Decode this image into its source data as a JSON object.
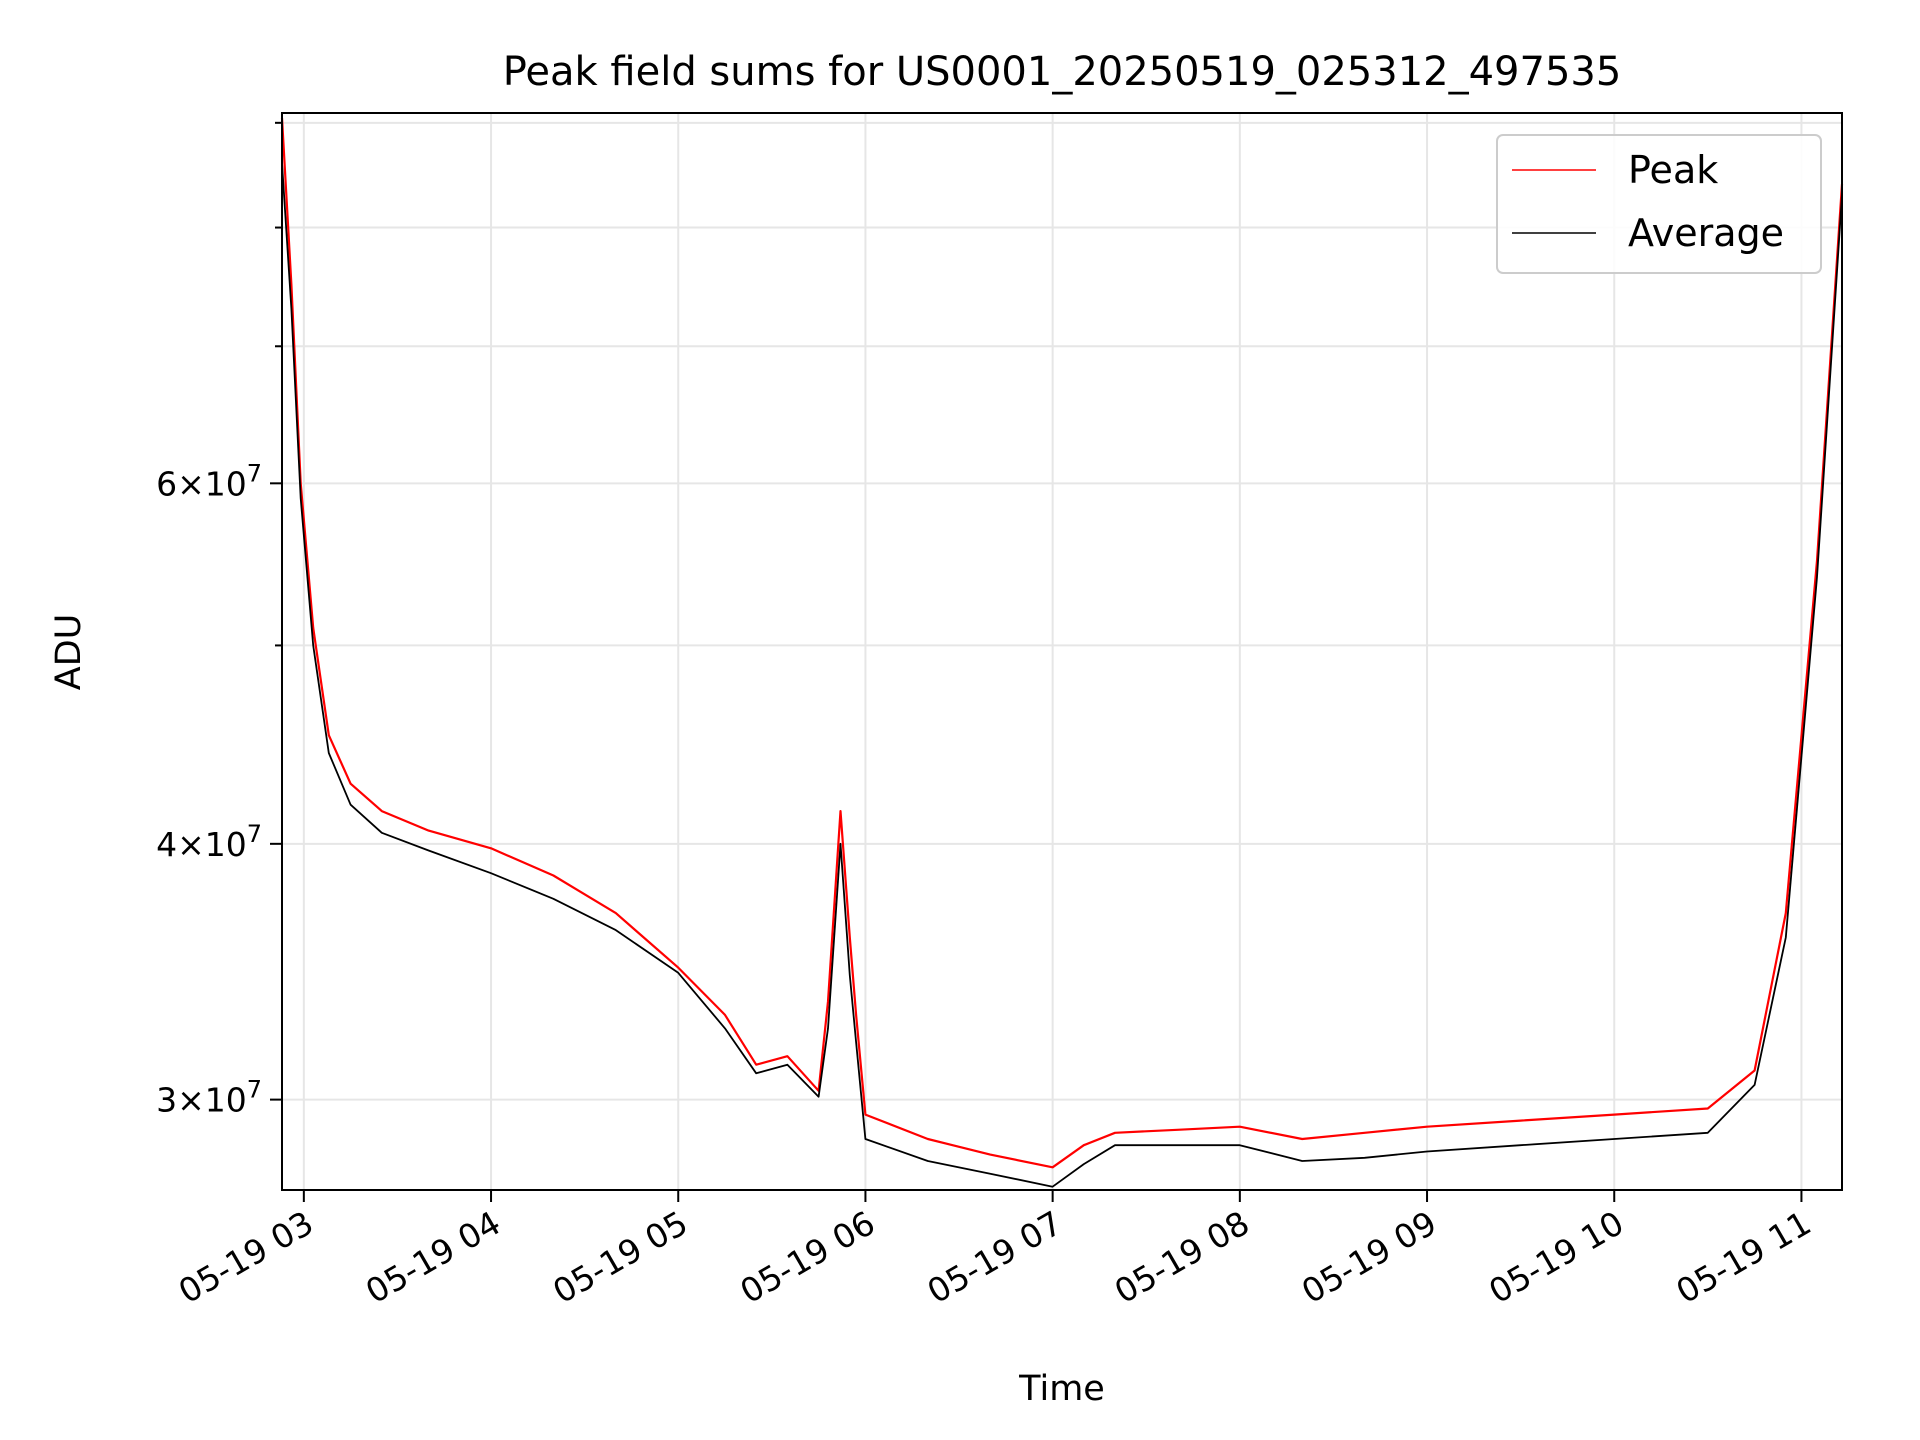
{
  "chart_data": {
    "type": "line",
    "title": "Peak field sums for US0001_20250519_025312_497535",
    "xlabel": "Time",
    "ylabel": "ADU",
    "y_scale": "log",
    "ylim": [
      27100000,
      91000000
    ],
    "xlim": [
      "2025-05-19T02:53",
      "2025-05-19T11:13"
    ],
    "grid": true,
    "legend_position": "top-right",
    "x_ticks": [
      {
        "t": "2025-05-19T03:00",
        "label": "05-19 03"
      },
      {
        "t": "2025-05-19T04:00",
        "label": "05-19 04"
      },
      {
        "t": "2025-05-19T05:00",
        "label": "05-19 05"
      },
      {
        "t": "2025-05-19T06:00",
        "label": "05-19 06"
      },
      {
        "t": "2025-05-19T07:00",
        "label": "05-19 07"
      },
      {
        "t": "2025-05-19T08:00",
        "label": "05-19 08"
      },
      {
        "t": "2025-05-19T09:00",
        "label": "05-19 09"
      },
      {
        "t": "2025-05-19T10:00",
        "label": "05-19 10"
      },
      {
        "t": "2025-05-19T11:00",
        "label": "05-19 11"
      }
    ],
    "y_major_ticks": [
      {
        "value": 30000000,
        "mant": "3",
        "exp": "7"
      },
      {
        "value": 40000000,
        "mant": "4",
        "exp": "7"
      },
      {
        "value": 60000000,
        "mant": "6",
        "exp": "7"
      }
    ],
    "y_minor_ticks": [
      50000000,
      70000000,
      80000000,
      90000000
    ],
    "series": [
      {
        "name": "Peak",
        "color": "#ff0000",
        "points": [
          [
            "2025-05-19T02:53",
            90500000
          ],
          [
            "2025-05-19T02:56",
            75000000
          ],
          [
            "2025-05-19T02:59",
            60000000
          ],
          [
            "2025-05-19T03:03",
            51000000
          ],
          [
            "2025-05-19T03:08",
            45200000
          ],
          [
            "2025-05-19T03:15",
            42800000
          ],
          [
            "2025-05-19T03:25",
            41500000
          ],
          [
            "2025-05-19T03:40",
            40600000
          ],
          [
            "2025-05-19T04:00",
            39800000
          ],
          [
            "2025-05-19T04:20",
            38600000
          ],
          [
            "2025-05-19T04:40",
            37000000
          ],
          [
            "2025-05-19T05:00",
            34800000
          ],
          [
            "2025-05-19T05:15",
            33000000
          ],
          [
            "2025-05-19T05:25",
            31200000
          ],
          [
            "2025-05-19T05:35",
            31500000
          ],
          [
            "2025-05-19T05:45",
            30300000
          ],
          [
            "2025-05-19T05:48",
            33500000
          ],
          [
            "2025-05-19T05:52",
            41500000
          ],
          [
            "2025-05-19T05:55",
            36000000
          ],
          [
            "2025-05-19T05:57",
            33000000
          ],
          [
            "2025-05-19T06:00",
            29500000
          ],
          [
            "2025-05-19T06:20",
            28700000
          ],
          [
            "2025-05-19T06:40",
            28200000
          ],
          [
            "2025-05-19T07:00",
            27800000
          ],
          [
            "2025-05-19T07:10",
            28500000
          ],
          [
            "2025-05-19T07:20",
            28900000
          ],
          [
            "2025-05-19T07:40",
            29000000
          ],
          [
            "2025-05-19T08:00",
            29100000
          ],
          [
            "2025-05-19T08:20",
            28700000
          ],
          [
            "2025-05-19T08:40",
            28900000
          ],
          [
            "2025-05-19T09:00",
            29100000
          ],
          [
            "2025-05-19T09:30",
            29300000
          ],
          [
            "2025-05-19T10:00",
            29500000
          ],
          [
            "2025-05-19T10:30",
            29700000
          ],
          [
            "2025-05-19T10:45",
            31000000
          ],
          [
            "2025-05-19T10:55",
            37000000
          ],
          [
            "2025-05-19T11:05",
            55000000
          ],
          [
            "2025-05-19T11:13",
            84000000
          ]
        ]
      },
      {
        "name": "Average",
        "color": "#000000",
        "points": [
          [
            "2025-05-19T02:53",
            86000000
          ],
          [
            "2025-05-19T02:56",
            73000000
          ],
          [
            "2025-05-19T02:59",
            59000000
          ],
          [
            "2025-05-19T03:03",
            50000000
          ],
          [
            "2025-05-19T03:08",
            44300000
          ],
          [
            "2025-05-19T03:15",
            41800000
          ],
          [
            "2025-05-19T03:25",
            40500000
          ],
          [
            "2025-05-19T03:40",
            39700000
          ],
          [
            "2025-05-19T04:00",
            38700000
          ],
          [
            "2025-05-19T04:20",
            37600000
          ],
          [
            "2025-05-19T04:40",
            36300000
          ],
          [
            "2025-05-19T05:00",
            34600000
          ],
          [
            "2025-05-19T05:15",
            32500000
          ],
          [
            "2025-05-19T05:25",
            30900000
          ],
          [
            "2025-05-19T05:35",
            31200000
          ],
          [
            "2025-05-19T05:45",
            30100000
          ],
          [
            "2025-05-19T05:48",
            32500000
          ],
          [
            "2025-05-19T05:52",
            40000000
          ],
          [
            "2025-05-19T05:55",
            34500000
          ],
          [
            "2025-05-19T05:57",
            32000000
          ],
          [
            "2025-05-19T06:00",
            28700000
          ],
          [
            "2025-05-19T06:20",
            28000000
          ],
          [
            "2025-05-19T06:40",
            27600000
          ],
          [
            "2025-05-19T07:00",
            27200000
          ],
          [
            "2025-05-19T07:10",
            27900000
          ],
          [
            "2025-05-19T07:20",
            28500000
          ],
          [
            "2025-05-19T07:40",
            28500000
          ],
          [
            "2025-05-19T08:00",
            28500000
          ],
          [
            "2025-05-19T08:20",
            28000000
          ],
          [
            "2025-05-19T08:40",
            28100000
          ],
          [
            "2025-05-19T09:00",
            28300000
          ],
          [
            "2025-05-19T09:30",
            28500000
          ],
          [
            "2025-05-19T10:00",
            28700000
          ],
          [
            "2025-05-19T10:30",
            28900000
          ],
          [
            "2025-05-19T10:45",
            30500000
          ],
          [
            "2025-05-19T10:55",
            36000000
          ],
          [
            "2025-05-19T11:05",
            54000000
          ],
          [
            "2025-05-19T11:13",
            83000000
          ]
        ]
      }
    ]
  }
}
